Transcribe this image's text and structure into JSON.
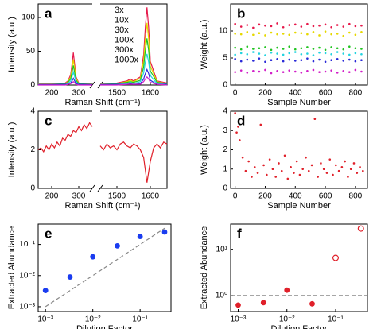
{
  "chart_data": [
    {
      "type": "line",
      "label": "a",
      "xlabel": "Raman Shift (cm⁻¹)",
      "ylabel": "Intensity (a.u.)",
      "x": [
        150,
        200,
        250,
        260,
        270,
        275,
        280,
        285,
        290,
        300,
        350,
        1450,
        1500,
        1530,
        1540,
        1550,
        1570,
        1580,
        1585,
        1590,
        1595,
        1600,
        1620,
        1650
      ],
      "xlim": [
        150,
        1650
      ],
      "xbreak": [
        350,
        1450
      ],
      "xticks": [
        200,
        300,
        1500,
        1600
      ],
      "ylim": [
        0,
        120
      ],
      "yticks": [
        0,
        50,
        100
      ],
      "legend": true,
      "series": [
        {
          "name": "3x",
          "color": "#e6194b",
          "values": [
            2,
            2,
            3,
            6,
            15,
            30,
            48,
            30,
            12,
            3,
            2,
            2,
            3,
            6,
            9,
            6,
            12,
            45,
            85,
            115,
            85,
            35,
            6,
            3
          ]
        },
        {
          "name": "10x",
          "color": "#e6d800",
          "values": [
            2,
            2,
            2,
            5,
            12,
            24,
            38,
            24,
            10,
            2,
            2,
            2,
            2,
            5,
            7,
            5,
            10,
            36,
            68,
            92,
            68,
            28,
            5,
            2
          ]
        },
        {
          "name": "30x",
          "color": "#22c422",
          "values": [
            1,
            1,
            2,
            4,
            9,
            18,
            29,
            18,
            7,
            2,
            1,
            1,
            2,
            4,
            5,
            4,
            7,
            27,
            51,
            69,
            51,
            21,
            4,
            2
          ]
        },
        {
          "name": "100x",
          "color": "#22d3e0",
          "values": [
            1,
            1,
            1,
            2,
            6,
            12,
            19,
            12,
            5,
            1,
            1,
            1,
            1,
            2,
            4,
            2,
            5,
            18,
            34,
            46,
            34,
            14,
            2,
            1
          ]
        },
        {
          "name": "300x",
          "color": "#2a2ad8",
          "values": [
            1,
            1,
            1,
            1,
            3,
            6,
            10,
            6,
            2,
            1,
            1,
            1,
            1,
            1,
            2,
            1,
            2,
            9,
            17,
            23,
            17,
            7,
            1,
            1
          ]
        },
        {
          "name": "1000x",
          "color": "#d21fc8",
          "values": [
            0,
            0,
            0,
            1,
            2,
            3,
            5,
            3,
            1,
            0,
            0,
            0,
            0,
            1,
            1,
            1,
            1,
            5,
            9,
            12,
            9,
            4,
            1,
            0
          ]
        }
      ]
    },
    {
      "type": "scatter",
      "label": "b",
      "xlabel": "Sample Number",
      "ylabel": "Weight (a.u.)",
      "x": [
        0,
        40,
        80,
        120,
        160,
        200,
        240,
        280,
        320,
        360,
        400,
        440,
        480,
        520,
        560,
        600,
        640,
        680,
        720,
        760,
        800,
        840
      ],
      "xlim": [
        -30,
        880
      ],
      "xticks": [
        0,
        200,
        400,
        600,
        800
      ],
      "ylim": [
        0,
        15
      ],
      "yticks": [
        0,
        5,
        10
      ],
      "series": [
        {
          "color": "#e6194b",
          "values": [
            11.3,
            10.8,
            11.1,
            10.6,
            11.2,
            11,
            10.9,
            11.4,
            10.7,
            11.1,
            11.2,
            10.8,
            11.3,
            10.9,
            11,
            11.2,
            10.7,
            11.1,
            10.8,
            11.3,
            10.9,
            11
          ]
        },
        {
          "color": "#e6d800",
          "values": [
            9.5,
            9.4,
            9.8,
            9.3,
            9.6,
            9.2,
            9.7,
            9.4,
            9.5,
            9.3,
            9.7,
            9.6,
            9.4,
            9.8,
            9.2,
            9.9,
            9.4,
            9.5,
            9.1,
            9.7,
            9.3,
            9.8
          ]
        },
        {
          "color": "#22c422",
          "values": [
            6.9,
            6.6,
            7.1,
            6.7,
            6.8,
            7.0,
            6.5,
            6.9,
            6.7,
            7.1,
            6.6,
            6.8,
            7.0,
            6.7,
            6.9,
            6.5,
            7.0,
            6.8,
            6.6,
            7.1,
            6.8,
            6.7
          ]
        },
        {
          "color": "#22d3e0",
          "values": [
            5.6,
            5.9,
            5.7,
            6.1,
            5.8,
            5.5,
            6.0,
            5.8,
            5.6,
            5.9,
            6.1,
            5.7,
            5.8,
            5.5,
            6.0,
            5.9,
            5.7,
            6.1,
            5.8,
            5.6,
            5.9,
            5.7
          ]
        },
        {
          "color": "#2a2ad8",
          "values": [
            4.8,
            4.4,
            4.7,
            4.5,
            4.9,
            4.3,
            4.6,
            4.8,
            4.4,
            4.7,
            4.5,
            4.6,
            4.9,
            4.4,
            4.7,
            4.3,
            4.6,
            4.8,
            4.5,
            4.7,
            4.4,
            4.6
          ]
        },
        {
          "color": "#d21fc8",
          "values": [
            2.4,
            2.7,
            2.3,
            2.6,
            2.5,
            2.8,
            2.2,
            2.6,
            2.4,
            2.7,
            2.5,
            2.3,
            2.6,
            2.8,
            2.4,
            2.5,
            2.7,
            2.3,
            2.6,
            2.4,
            2.8,
            2.5
          ]
        }
      ]
    },
    {
      "type": "line",
      "label": "c",
      "xlabel": "Raman Shift (cm⁻¹)",
      "ylabel": "Intensity (a.u.)",
      "x": [
        150,
        160,
        170,
        180,
        190,
        200,
        210,
        220,
        230,
        240,
        250,
        260,
        270,
        280,
        290,
        300,
        310,
        320,
        330,
        340,
        350,
        1450,
        1460,
        1470,
        1480,
        1490,
        1500,
        1510,
        1520,
        1530,
        1540,
        1550,
        1560,
        1570,
        1580,
        1590,
        1600,
        1610,
        1620,
        1630,
        1640,
        1650
      ],
      "xlim": [
        150,
        1650
      ],
      "xbreak": [
        350,
        1450
      ],
      "xticks": [
        200,
        300,
        1500,
        1600
      ],
      "ylim": [
        0,
        4
      ],
      "yticks": [
        0,
        2,
        4
      ],
      "series": [
        {
          "color": "#e0202a",
          "values": [
            2.0,
            2.1,
            1.9,
            2.2,
            2.0,
            2.3,
            2.1,
            2.4,
            2.2,
            2.6,
            2.5,
            2.8,
            2.7,
            3.0,
            2.9,
            3.2,
            3.0,
            3.3,
            3.1,
            3.4,
            3.2,
            2.2,
            2.0,
            2.3,
            2.1,
            2.2,
            2.0,
            2.3,
            2.4,
            2.2,
            2.1,
            2.3,
            2.2,
            2.0,
            1.6,
            0.3,
            1.4,
            2.1,
            2.3,
            2.1,
            2.4,
            2.3
          ]
        }
      ]
    },
    {
      "type": "scatter",
      "label": "d",
      "xlabel": "Sample Number",
      "ylabel": "Weight (a.u.)",
      "x": [
        0,
        10,
        20,
        30,
        50,
        70,
        90,
        110,
        130,
        150,
        170,
        190,
        210,
        230,
        250,
        270,
        290,
        310,
        330,
        350,
        370,
        390,
        410,
        430,
        450,
        470,
        490,
        510,
        530,
        550,
        570,
        590,
        610,
        630,
        650,
        670,
        690,
        710,
        730,
        750,
        770,
        790,
        810,
        830,
        850
      ],
      "xlim": [
        -30,
        880
      ],
      "xticks": [
        0,
        200,
        400,
        600,
        800
      ],
      "ylim": [
        0,
        4
      ],
      "yticks": [
        0,
        1,
        2,
        3,
        4
      ],
      "series": [
        {
          "color": "#e0202a",
          "values": [
            3.9,
            2.9,
            3.2,
            2.5,
            1.6,
            0.9,
            1.4,
            0.6,
            1.1,
            0.8,
            3.3,
            1.2,
            0.7,
            1.5,
            1.0,
            0.6,
            1.3,
            0.9,
            1.7,
            0.5,
            1.1,
            0.8,
            1.4,
            0.7,
            1.0,
            1.6,
            0.9,
            1.2,
            3.6,
            0.6,
            1.3,
            1.0,
            0.8,
            1.5,
            0.7,
            1.2,
            0.9,
            1.1,
            1.4,
            0.6,
            1.0,
            1.3,
            0.8,
            1.1,
            0.9
          ]
        }
      ]
    },
    {
      "type": "scatter",
      "label": "e",
      "xlabel": "Dilution Factor",
      "ylabel": "Extracted Abundance",
      "xscale": "log",
      "yscale": "log",
      "xlim": [
        0.0007,
        0.45
      ],
      "ylim": [
        0.0007,
        0.45
      ],
      "xticks": [
        {
          "value": 0.001,
          "label": "10⁻³"
        },
        {
          "value": 0.01,
          "label": "10⁻²"
        },
        {
          "value": 0.1,
          "label": "10⁻¹"
        }
      ],
      "yticks": [
        {
          "value": 0.001,
          "label": "10⁻³"
        },
        {
          "value": 0.01,
          "label": "10⁻²"
        },
        {
          "value": 0.1,
          "label": "10⁻¹"
        }
      ],
      "series": [
        {
          "color": "#888888",
          "line_style": "dashed",
          "x": [
            0.001,
            0.33
          ],
          "values": [
            0.001,
            0.33
          ]
        },
        {
          "color": "#1a3cf0",
          "marker": "filled",
          "x": [
            0.001,
            0.0033,
            0.01,
            0.033,
            0.1,
            0.33
          ],
          "values": [
            0.0033,
            0.009,
            0.04,
            0.09,
            0.18,
            0.25
          ]
        }
      ]
    },
    {
      "type": "scatter",
      "label": "f",
      "xlabel": "Dilution Factor",
      "ylabel": "Extracted Abundance",
      "xscale": "log",
      "yscale": "log",
      "xlim": [
        0.0007,
        0.45
      ],
      "ylim": [
        0.45,
        35
      ],
      "xticks": [
        {
          "value": 0.001,
          "label": "10⁻³"
        },
        {
          "value": 0.01,
          "label": "10⁻²"
        },
        {
          "value": 0.1,
          "label": "10⁻¹"
        }
      ],
      "yticks": [
        {
          "value": 1,
          "label": "10⁰"
        },
        {
          "value": 10,
          "label": "10¹"
        }
      ],
      "series": [
        {
          "color": "#888888",
          "line_style": "dashed",
          "x": [
            0.0007,
            0.45
          ],
          "values": [
            1,
            1
          ]
        },
        {
          "color": "#e0202a",
          "marker": "filled",
          "x": [
            0.001,
            0.0033,
            0.01,
            0.033
          ],
          "values": [
            0.62,
            0.7,
            1.3,
            0.66
          ]
        },
        {
          "color": "#e0202a",
          "marker": "open",
          "x": [
            0.1,
            0.33
          ],
          "values": [
            6.5,
            28
          ]
        }
      ]
    }
  ]
}
